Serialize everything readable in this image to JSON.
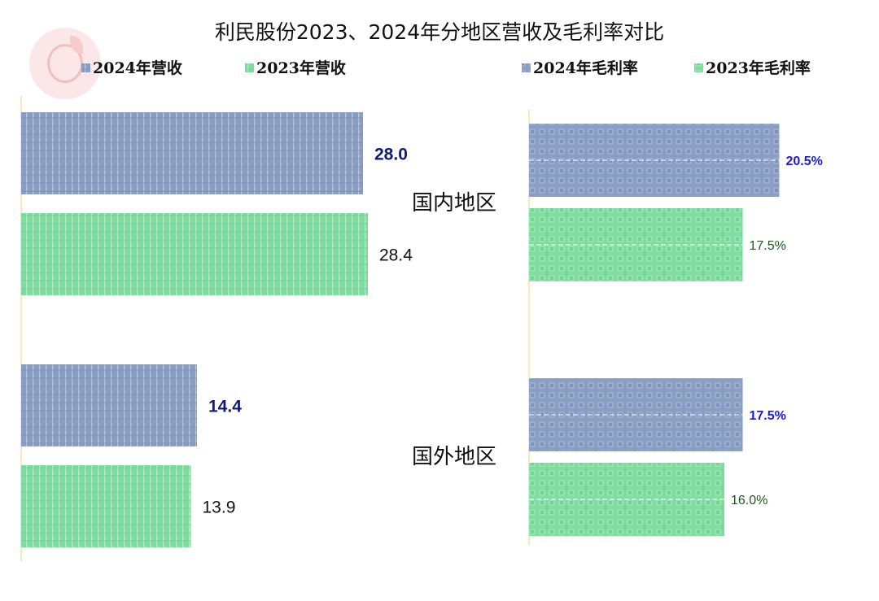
{
  "chart_data": [
    {
      "type": "bar",
      "orientation": "horizontal",
      "title": "利民股份2023、2024年分地区营收及毛利率对比",
      "categories": [
        "国内地区",
        "国外地区"
      ],
      "series": [
        {
          "name": "2024年营收",
          "values": [
            28.0,
            14.4
          ],
          "labels": [
            "28.0",
            "14.4"
          ],
          "color": "#8a9ec4",
          "label_color": "#0d1a7a"
        },
        {
          "name": "2023年营收",
          "values": [
            28.4,
            13.9
          ],
          "labels": [
            "28.4",
            "13.9"
          ],
          "color": "#7fdc9f",
          "label_color": "#111111"
        }
      ],
      "xlim": [
        0,
        30
      ]
    },
    {
      "type": "bar",
      "orientation": "horizontal",
      "categories": [
        "国内地区",
        "国外地区"
      ],
      "series": [
        {
          "name": "2024年毛利率",
          "values": [
            20.5,
            17.5
          ],
          "labels": [
            "20.5%",
            "17.5%"
          ],
          "color": "#8a9ec4",
          "label_color": "#1a1ae0"
        },
        {
          "name": "2023年毛利率",
          "values": [
            17.5,
            16.0
          ],
          "labels": [
            "17.5%",
            "16.0%"
          ],
          "color": "#7fdc9f",
          "label_color": "#1f5a1f"
        }
      ],
      "xlim": [
        0,
        24
      ]
    }
  ],
  "logo": {
    "icon": "company-logo-icon"
  }
}
